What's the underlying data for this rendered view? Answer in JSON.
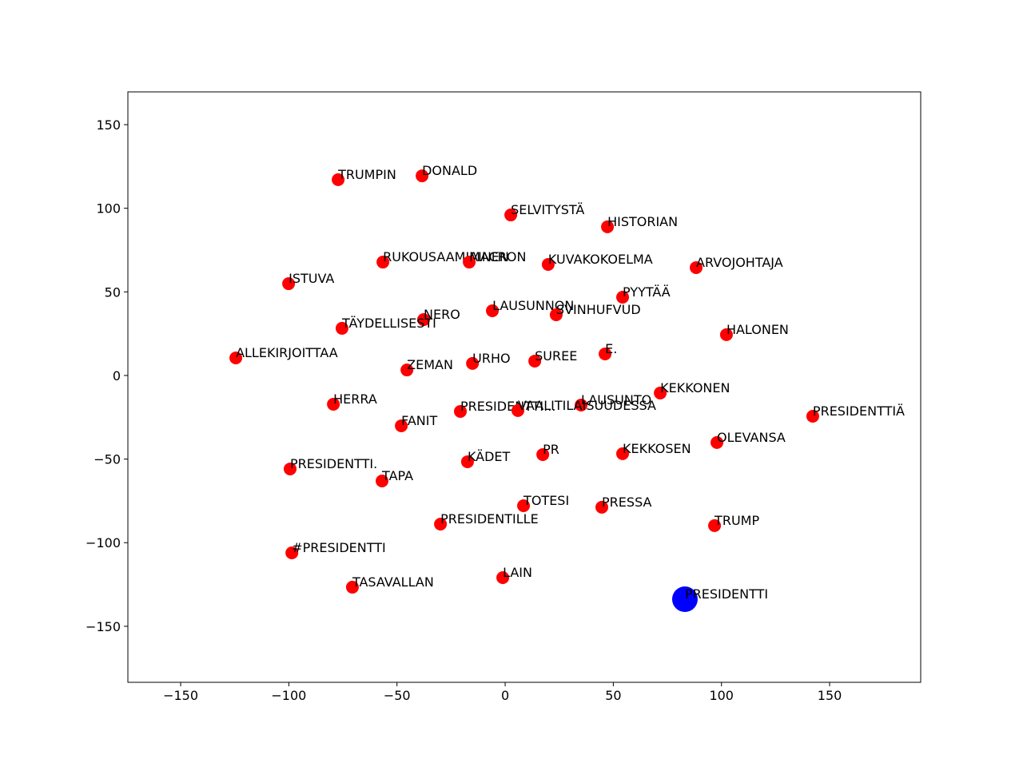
{
  "chart_data": {
    "type": "scatter",
    "xlim": [
      -174.4,
      192.1
    ],
    "ylim": [
      -183.5,
      169.6
    ],
    "xticks": [
      {
        "value": -150,
        "label": "−150"
      },
      {
        "value": -100,
        "label": "−100"
      },
      {
        "value": -50,
        "label": "−50"
      },
      0,
      50,
      100,
      150
    ],
    "yticks": [
      {
        "value": -150,
        "label": "−150"
      },
      {
        "value": -100,
        "label": "−100"
      },
      {
        "value": -50,
        "label": "−50"
      },
      0,
      50,
      100,
      150
    ],
    "series": [
      {
        "color": "#ff0000",
        "size": 8,
        "labels": [
          "TRUMPIN",
          "DONALD",
          "SELVITYSTÄ",
          "HISTORIAN",
          "RUKOUSAAMIAINEN",
          "MACRON",
          "KUVAKOKOELMA",
          "ARVOJOHTAJA",
          "ISTUVA",
          "PYYTÄÄ",
          "LAUSUNNON",
          "SVINHUFVUD",
          "NERO",
          "TÄYDELLISESTI",
          "HALONEN",
          "ALLEKIRJOITTAA",
          "E.",
          "SUREE",
          "URHO",
          "ZEMAN",
          "KEKKONEN",
          "HERRA",
          "LAUSUNTO",
          "PRESIDENTTIÄ",
          "PRESIDENTTI...",
          "VAALITILAISUUDESSA",
          "FANIT",
          "OLEVANSA",
          "PR",
          "KEKKOSEN",
          "KÄDET",
          "PRESIDENTTI.",
          "TAPA",
          "TOTESI",
          "PRESSA",
          "PRESIDENTILLE",
          "TRUMP",
          "#PRESIDENTTI",
          "LAIN",
          "TASAVALLAN"
        ],
        "x": [
          -77.2,
          -38.4,
          2.6,
          47.3,
          -56.5,
          -16.6,
          19.9,
          88.3,
          -100.1,
          54.3,
          -5.9,
          23.6,
          -37.7,
          -75.4,
          102.3,
          -124.5,
          46.2,
          13.7,
          -15.1,
          -45.4,
          71.7,
          -79.4,
          35.1,
          142.2,
          -20.7,
          5.9,
          -48.0,
          97.9,
          17.4,
          54.3,
          -17.4,
          -99.4,
          -56.9,
          8.5,
          44.7,
          -29.9,
          96.8,
          -98.6,
          -1.1,
          -70.6
        ],
        "values": [
          117.1,
          119.4,
          96.0,
          88.9,
          67.8,
          67.8,
          66.4,
          64.5,
          54.9,
          46.8,
          38.7,
          36.3,
          33.4,
          28.2,
          24.4,
          10.5,
          12.9,
          8.6,
          7.2,
          3.3,
          -10.5,
          -17.2,
          -17.7,
          -24.4,
          -21.5,
          -21.0,
          -30.1,
          -40.1,
          -47.3,
          -46.8,
          -51.6,
          -55.9,
          -63.1,
          -77.9,
          -78.8,
          -88.9,
          -89.8,
          -106.1,
          -120.9,
          -126.6
        ]
      },
      {
        "color": "#0000ff",
        "size": 16,
        "labels": [
          "PRESIDENTTI"
        ],
        "x": [
          83.1
        ],
        "values": [
          -133.8
        ]
      }
    ]
  }
}
